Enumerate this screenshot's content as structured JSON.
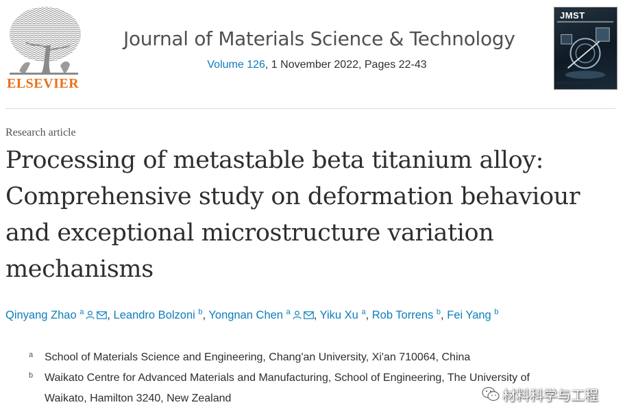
{
  "publisher": {
    "name": "ELSEVIER",
    "logo_icon": "tree-logo-icon",
    "brand_color": "#e9711c"
  },
  "journal": {
    "title": "Journal of Materials Science & Technology",
    "volume_link": "Volume 126",
    "issue_info": ", 1 November 2022, Pages 22-43",
    "link_color": "#0c7dbb"
  },
  "cover": {
    "label": "JMST",
    "icon": "journal-cover-icon"
  },
  "article": {
    "type": "Research article",
    "title": "Processing of metastable beta titanium alloy: Comprehensive study on deformation behaviour and exceptional microstructure variation mechanisms"
  },
  "authors": [
    {
      "name": "Qinyang Zhao",
      "sup": "a",
      "icons": [
        "person-icon",
        "mail-icon"
      ],
      "sep": ", "
    },
    {
      "name": "Leandro Bolzoni",
      "sup": "b",
      "icons": [],
      "sep": ", "
    },
    {
      "name": "Yongnan Chen",
      "sup": "a",
      "icons": [
        "person-icon",
        "mail-icon"
      ],
      "sep": ", "
    },
    {
      "name": "Yiku Xu",
      "sup": "a",
      "icons": [],
      "sep": ", "
    },
    {
      "name": "Rob Torrens",
      "sup": "b",
      "icons": [],
      "sep": ", "
    },
    {
      "name": "Fei Yang",
      "sup": "b",
      "icons": [],
      "sep": ""
    }
  ],
  "affiliations": [
    {
      "label": "a",
      "lines": [
        "School of Materials Science and Engineering, Chang'an University, Xi'an 710064, China"
      ]
    },
    {
      "label": "b",
      "lines": [
        "Waikato Centre for Advanced Materials and Manufacturing, School of Engineering, The University of",
        "Waikato, Hamilton 3240, New Zealand"
      ]
    }
  ],
  "watermark": {
    "text": "材料科学与工程",
    "icon": "wechat-icon"
  }
}
